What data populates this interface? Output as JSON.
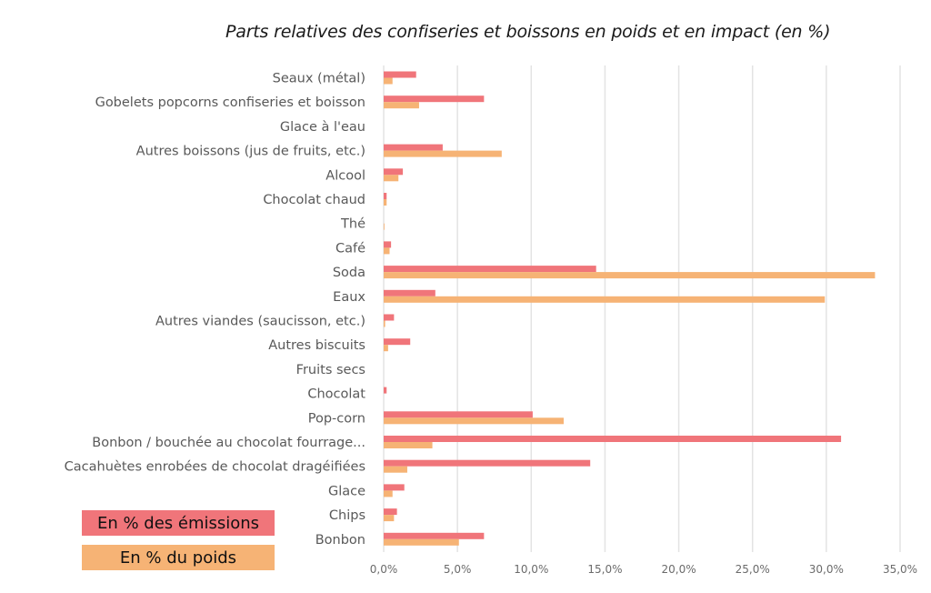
{
  "chart_data": {
    "type": "bar",
    "orientation": "horizontal",
    "title": "Parts relatives des confiseries et boissons en poids et en impact (en %)",
    "xlabel": "",
    "ylabel": "",
    "xlim": [
      0,
      35
    ],
    "grid": true,
    "legend_position": "bottom-left",
    "x_ticks": [
      0,
      5,
      10,
      15,
      20,
      25,
      30,
      35
    ],
    "x_tick_labels": [
      "0,0%",
      "5,0%",
      "10,0%",
      "15,0%",
      "20,0%",
      "25,0%",
      "30,0%",
      "35,0%"
    ],
    "categories": [
      "Seaux (métal)",
      "Gobelets popcorns confiseries et boisson",
      "Glace à l'eau",
      "Autres boissons (jus de fruits, etc.)",
      "Alcool",
      "Chocolat chaud",
      "Thé",
      "Café",
      "Soda",
      "Eaux",
      "Autres viandes (saucisson, etc.)",
      "Autres biscuits",
      "Fruits secs",
      "Chocolat",
      "Pop-corn",
      "Bonbon / bouchée au chocolat fourrage...",
      "Cacahuètes enrobées de chocolat dragéifiées",
      "Glace",
      "Chips",
      "Bonbon"
    ],
    "series": [
      {
        "name": "En % des émissions",
        "color": "#f0757a",
        "values": [
          2.2,
          6.8,
          0.0,
          4.0,
          1.3,
          0.2,
          0.0,
          0.5,
          14.4,
          3.5,
          0.7,
          1.8,
          0.0,
          0.2,
          10.1,
          31.0,
          14.0,
          1.4,
          0.9,
          6.8
        ]
      },
      {
        "name": "En % du poids",
        "color": "#f6b375",
        "values": [
          0.6,
          2.4,
          0.0,
          8.0,
          1.0,
          0.2,
          0.05,
          0.4,
          33.3,
          29.9,
          0.1,
          0.3,
          0.0,
          0.0,
          12.2,
          3.3,
          1.6,
          0.6,
          0.7,
          5.1
        ]
      }
    ]
  },
  "legend": {
    "emissions_label": "En % des émissions",
    "poids_label": "En % du poids",
    "emissions_color": "#f0757a",
    "poids_color": "#f6b375"
  }
}
